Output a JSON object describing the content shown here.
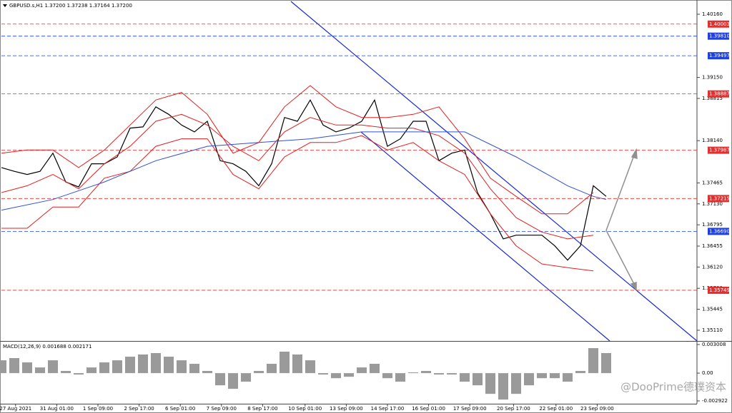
{
  "chart_data": [
    {
      "type": "line",
      "title": "GBPUSD.s,H1  1.37200 1.37238 1.37164 1.37200",
      "xlim": [
        0,
        540
      ],
      "ylim": [
        1.34939,
        1.40365
      ],
      "yticks": [
        {
          "value": 1.4016,
          "label": "1.40160"
        },
        {
          "value": 1.3915,
          "label": "1.39150"
        },
        {
          "value": 1.38815,
          "label": "1.38815"
        },
        {
          "value": 1.3814,
          "label": "1.38140"
        },
        {
          "value": 1.37465,
          "label": "1.37465"
        },
        {
          "value": 1.3713,
          "label": "1.37130"
        },
        {
          "value": 1.36795,
          "label": "1.36795"
        },
        {
          "value": 1.36455,
          "label": "1.36455"
        },
        {
          "value": 1.3612,
          "label": "1.36120"
        },
        {
          "value": 1.3578,
          "label": "1.35780"
        },
        {
          "value": 1.35445,
          "label": "1.35445"
        },
        {
          "value": 1.3511,
          "label": "1.35110"
        }
      ],
      "levels": [
        {
          "value": 1.40003,
          "label": "1.40003",
          "color": "#e03030"
        },
        {
          "value": 1.3981,
          "label": "1.39810",
          "color": "#2040e0"
        },
        {
          "value": 1.39497,
          "label": "1.39497",
          "color": "#2040e0"
        },
        {
          "value": 1.38887,
          "label": "1.38887",
          "color": "#e03030"
        },
        {
          "value": 1.37987,
          "label": "1.37987",
          "color": "#e03030"
        },
        {
          "value": 1.37215,
          "label": "1.37215",
          "color": "#e03030"
        },
        {
          "value": 1.3669,
          "label": "1.36690",
          "color": "#2040e0"
        },
        {
          "value": 1.35749,
          "label": "1.35749",
          "color": "#e03030"
        }
      ],
      "series": [
        {
          "color": "#000000",
          "x": [
            0,
            10,
            20,
            30,
            40,
            50,
            60,
            70,
            80,
            90,
            100,
            110,
            120,
            130,
            140,
            150,
            160,
            170,
            180,
            190,
            200,
            210,
            220,
            230,
            240,
            250,
            260,
            270,
            280,
            290,
            300,
            310,
            320,
            330,
            340,
            350,
            360,
            370,
            380,
            390,
            400,
            410,
            420,
            430,
            440,
            450,
            460,
            470
          ],
          "values": [
            1.3771,
            1.3765,
            1.376,
            1.3765,
            1.3794,
            1.3748,
            1.374,
            1.3777,
            1.3777,
            1.3788,
            1.3834,
            1.3836,
            1.3868,
            1.3856,
            1.3839,
            1.3828,
            1.3845,
            1.3782,
            1.3777,
            1.3765,
            1.3742,
            1.3777,
            1.3851,
            1.3845,
            1.3879,
            1.3839,
            1.3828,
            1.3834,
            1.3845,
            1.3879,
            1.3805,
            1.3817,
            1.3845,
            1.3845,
            1.3782,
            1.3794,
            1.3799,
            1.3731,
            1.3697,
            1.3657,
            1.3663,
            1.3663,
            1.3663,
            1.3646,
            1.3623,
            1.3646,
            1.3742,
            1.3725
          ]
        },
        {
          "color": "#e02020",
          "x": [
            0,
            20,
            40,
            60,
            80,
            100,
            120,
            140,
            160,
            180,
            200,
            220,
            240,
            260,
            280,
            300,
            320,
            340,
            360,
            380,
            400,
            420,
            440,
            460
          ],
          "values": [
            1.3794,
            1.3799,
            1.3799,
            1.3771,
            1.3799,
            1.3839,
            1.3879,
            1.3891,
            1.3856,
            1.3794,
            1.3811,
            1.3868,
            1.3902,
            1.3868,
            1.3851,
            1.3851,
            1.3856,
            1.3868,
            1.3817,
            1.3754,
            1.3725,
            1.3697,
            1.3697,
            1.3731
          ]
        },
        {
          "color": "#e02020",
          "x": [
            0,
            20,
            40,
            60,
            80,
            100,
            120,
            140,
            160,
            180,
            200,
            220,
            240,
            260,
            280,
            300,
            320,
            340,
            360,
            380,
            400,
            420,
            440,
            460
          ],
          "values": [
            1.3731,
            1.3742,
            1.376,
            1.3737,
            1.3777,
            1.3805,
            1.3845,
            1.3856,
            1.3839,
            1.3805,
            1.3782,
            1.3828,
            1.3851,
            1.3839,
            1.3839,
            1.3834,
            1.3834,
            1.3822,
            1.3794,
            1.3737,
            1.3691,
            1.3668,
            1.3657,
            1.3663
          ]
        },
        {
          "color": "#e02020",
          "x": [
            0,
            20,
            40,
            60,
            80,
            100,
            120,
            140,
            160,
            180,
            200,
            220,
            240,
            260,
            280,
            300,
            320,
            340,
            360,
            380,
            400,
            420,
            440,
            460
          ],
          "values": [
            1.3674,
            1.3674,
            1.3708,
            1.3708,
            1.3754,
            1.3765,
            1.3805,
            1.3817,
            1.3817,
            1.376,
            1.3737,
            1.3788,
            1.3811,
            1.3811,
            1.3822,
            1.3799,
            1.3811,
            1.3782,
            1.376,
            1.3697,
            1.3646,
            1.3617,
            1.3611,
            1.3606
          ]
        },
        {
          "color": "#3050d0",
          "x": [
            0,
            40,
            80,
            120,
            160,
            200,
            240,
            280,
            320,
            360,
            400,
            440,
            460,
            470
          ],
          "values": [
            1.3703,
            1.372,
            1.3748,
            1.3782,
            1.3805,
            1.3811,
            1.3817,
            1.3828,
            1.3828,
            1.3828,
            1.3788,
            1.3742,
            1.3725,
            1.372
          ]
        }
      ]
    },
    {
      "type": "bar",
      "title": "MACD(12,26,9) 0.001688 0.002171",
      "color": "#9a9a9a",
      "xlim": [
        0,
        540
      ],
      "ylim": [
        -0.00322,
        0.00331
      ],
      "yticks": [
        {
          "value": 0.003008,
          "label": "0.003008"
        },
        {
          "value": 0,
          "label": "0.00"
        },
        {
          "value": -0.002922,
          "label": "-0.002922"
        }
      ],
      "xticks": [
        {
          "value": 11,
          "label": "27 Aug 2021"
        },
        {
          "value": 43,
          "label": "31 Aug 01:00"
        },
        {
          "value": 75,
          "label": "1 Sep 09:00"
        },
        {
          "value": 107,
          "label": "2 Sep 17:00"
        },
        {
          "value": 139,
          "label": "6 Sep 01:00"
        },
        {
          "value": 171,
          "label": "7 Sep 09:00"
        },
        {
          "value": 203,
          "label": "8 Sep 17:00"
        },
        {
          "value": 236,
          "label": "10 Sep 01:00"
        },
        {
          "value": 268,
          "label": "13 Sep 09:00"
        },
        {
          "value": 300,
          "label": "14 Sep 17:00"
        },
        {
          "value": 332,
          "label": "16 Sep 01:00"
        },
        {
          "value": 364,
          "label": "17 Sep 09:00"
        },
        {
          "value": 398,
          "label": "20 Sep 17:00"
        },
        {
          "value": 431,
          "label": "22 Sep 01:00"
        },
        {
          "value": 463,
          "label": "23 Sep 09:00"
        }
      ],
      "x": [
        0,
        10,
        20,
        30,
        40,
        50,
        60,
        70,
        80,
        90,
        100,
        110,
        120,
        130,
        140,
        150,
        160,
        170,
        180,
        190,
        200,
        210,
        220,
        230,
        240,
        250,
        260,
        270,
        280,
        290,
        300,
        310,
        320,
        330,
        340,
        350,
        360,
        370,
        380,
        390,
        400,
        410,
        420,
        430,
        440,
        450,
        460,
        470
      ],
      "values": [
        0.00135,
        0.00158,
        0.00113,
        0.0006,
        0.00135,
        0.00023,
        -0.00015,
        0.0006,
        0.00113,
        0.00135,
        0.00173,
        0.00196,
        0.00211,
        0.00173,
        0.00135,
        0.00098,
        0.00023,
        -0.00128,
        -0.00165,
        -0.0009,
        0.00023,
        0.00098,
        0.00226,
        0.00196,
        0.00135,
        -0.00015,
        -0.00053,
        -0.00038,
        0.0006,
        0.00098,
        -0.00053,
        -0.0009,
        8e-05,
        0.00023,
        -0.00015,
        -0.00015,
        -0.0009,
        -0.00128,
        -0.00218,
        -0.00278,
        -0.00218,
        -0.00128,
        -0.00053,
        -0.00053,
        -0.0009,
        0.00023,
        0.00263,
        0.00211
      ]
    }
  ],
  "watermark": "@DooPrime德璞资本"
}
